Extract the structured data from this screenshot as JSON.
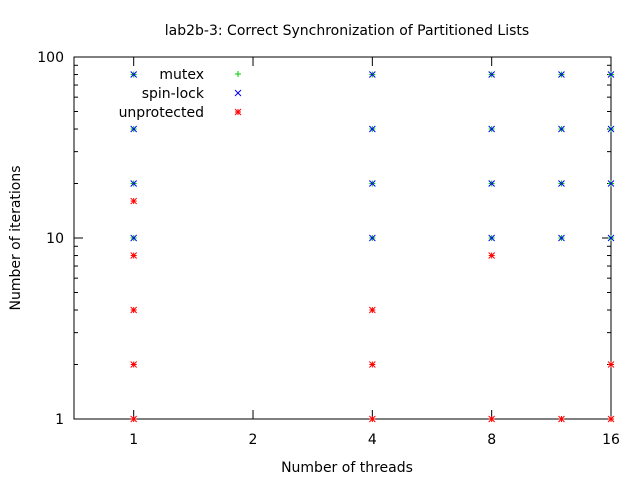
{
  "chart_data": {
    "type": "scatter",
    "title": "lab2b-3: Correct Synchronization of Partitioned Lists",
    "xlabel": "Number of threads",
    "ylabel": "Number of iterations",
    "xscale": "log2",
    "yscale": "log10",
    "xlim": [
      0.707,
      16
    ],
    "ylim": [
      1,
      100
    ],
    "xticks": [
      1,
      2,
      4,
      8,
      16
    ],
    "yticks": [
      1,
      10,
      100
    ],
    "legend_position": "top-left",
    "series": [
      {
        "name": "mutex",
        "color": "#00cc00",
        "marker": "plus",
        "points": [
          [
            1,
            10
          ],
          [
            1,
            20
          ],
          [
            1,
            40
          ],
          [
            1,
            80
          ],
          [
            4,
            10
          ],
          [
            4,
            20
          ],
          [
            4,
            40
          ],
          [
            4,
            80
          ],
          [
            8,
            10
          ],
          [
            8,
            20
          ],
          [
            8,
            40
          ],
          [
            8,
            80
          ],
          [
            12,
            10
          ],
          [
            12,
            20
          ],
          [
            12,
            40
          ],
          [
            12,
            80
          ],
          [
            16,
            10
          ],
          [
            16,
            20
          ],
          [
            16,
            40
          ],
          [
            16,
            80
          ]
        ]
      },
      {
        "name": "spin-lock",
        "color": "#0000ff",
        "marker": "x",
        "points": [
          [
            1,
            10
          ],
          [
            1,
            20
          ],
          [
            1,
            40
          ],
          [
            1,
            80
          ],
          [
            4,
            10
          ],
          [
            4,
            20
          ],
          [
            4,
            40
          ],
          [
            4,
            80
          ],
          [
            8,
            10
          ],
          [
            8,
            20
          ],
          [
            8,
            40
          ],
          [
            8,
            80
          ],
          [
            12,
            10
          ],
          [
            12,
            20
          ],
          [
            12,
            40
          ],
          [
            12,
            80
          ],
          [
            16,
            10
          ],
          [
            16,
            20
          ],
          [
            16,
            40
          ],
          [
            16,
            80
          ]
        ]
      },
      {
        "name": "unprotected",
        "color": "#ff0000",
        "marker": "star",
        "points": [
          [
            1,
            1
          ],
          [
            1,
            2
          ],
          [
            1,
            4
          ],
          [
            1,
            8
          ],
          [
            1,
            16
          ],
          [
            4,
            1
          ],
          [
            4,
            2
          ],
          [
            4,
            4
          ],
          [
            8,
            1
          ],
          [
            8,
            8
          ],
          [
            12,
            1
          ],
          [
            16,
            1
          ],
          [
            16,
            2
          ]
        ]
      }
    ]
  }
}
